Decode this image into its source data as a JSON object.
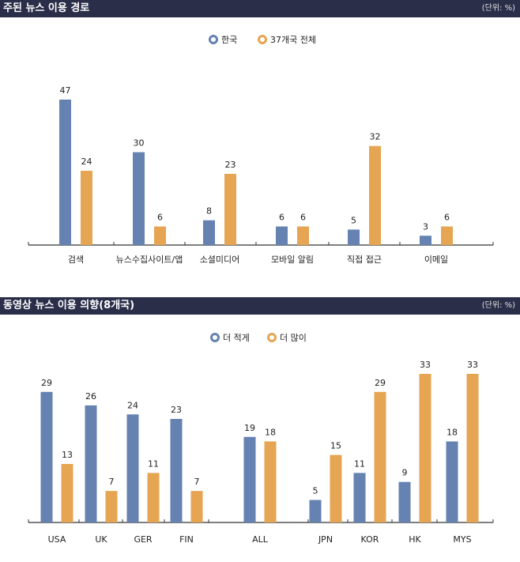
{
  "colors": {
    "series_a": "#6582b1",
    "series_b": "#e6a552",
    "header_bg": "#2b2e49"
  },
  "chart_data": [
    {
      "type": "bar",
      "title": "주된 뉴스 이용 경로",
      "unit_note": "(단위: %)",
      "categories": [
        "검색",
        "뉴스수집사이트/앱",
        "소셜미디어",
        "모바일 알림",
        "직접 접근",
        "이메일"
      ],
      "series": [
        {
          "name": "한국",
          "values": [
            47,
            30,
            8,
            6,
            5,
            3
          ]
        },
        {
          "name": "37개국 전체",
          "values": [
            24,
            6,
            23,
            6,
            32,
            6
          ]
        }
      ],
      "ylim": [
        0,
        47
      ],
      "legend": "top-center",
      "grid": false
    },
    {
      "type": "bar",
      "title": "동영상 뉴스 이용 의향(8개국)",
      "unit_note": "(단위: %)",
      "categories": [
        "USA",
        "UK",
        "GER",
        "FIN",
        "ALL",
        "JPN",
        "KOR",
        "HK",
        "MYS"
      ],
      "series": [
        {
          "name": "더 적게",
          "values": [
            29,
            26,
            24,
            23,
            19,
            5,
            11,
            9,
            18
          ]
        },
        {
          "name": "더 많이",
          "values": [
            13,
            7,
            11,
            7,
            18,
            15,
            29,
            33,
            33
          ]
        }
      ],
      "ylim": [
        0,
        33
      ],
      "legend": "top-center",
      "grid": false
    }
  ]
}
